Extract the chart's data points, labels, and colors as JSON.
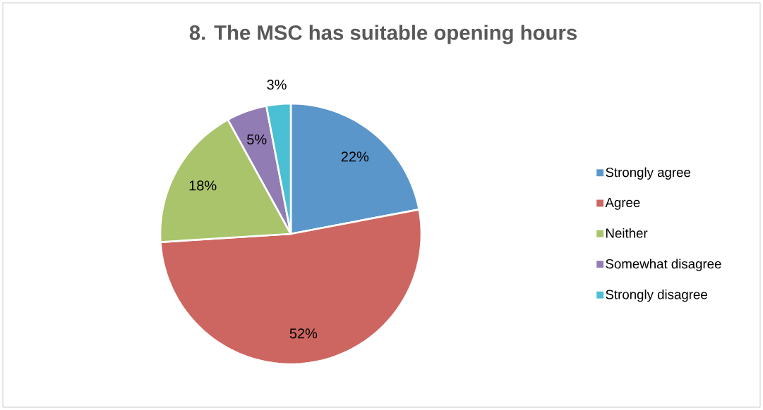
{
  "chart_data": {
    "type": "pie",
    "title": "8. The MSC has suitable opening hours",
    "categories": [
      "Strongly agree",
      "Agree",
      "Neither",
      "Somewhat disagree",
      "Strongly disagree"
    ],
    "values": [
      22,
      52,
      18,
      5,
      3
    ],
    "value_labels": [
      "22%",
      "52%",
      "18%",
      "5%",
      "3%"
    ],
    "colors": [
      "#5b96cb",
      "#cd6660",
      "#a9c46a",
      "#927cb4",
      "#4bbfd3"
    ],
    "legend": "right"
  }
}
